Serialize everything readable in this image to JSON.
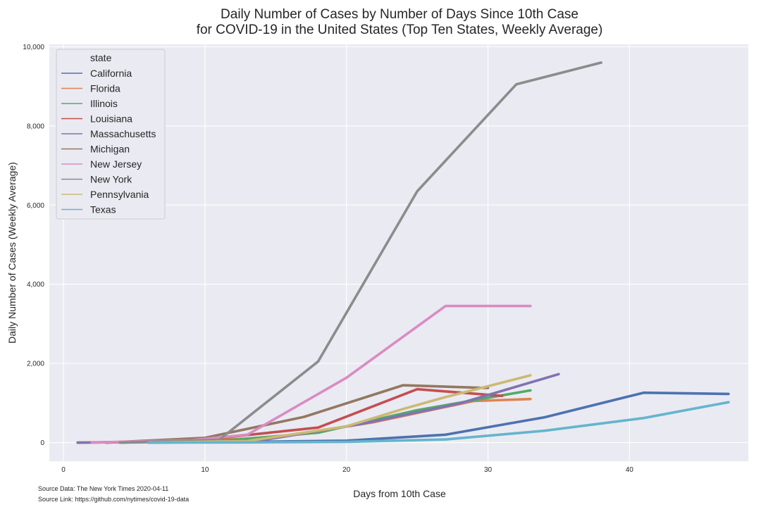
{
  "chart_data": {
    "type": "line",
    "title_line1": "Daily Number of Cases by Number of Days Since 10th Case",
    "title_line2": "for COVID-19 in the United States (Top Ten States, Weekly Average)",
    "xlabel": "Days from 10th Case",
    "ylabel": "Daily Number of Cases (Weekly Average)",
    "xlim": [
      -1,
      48.4
    ],
    "ylim": [
      -470,
      10060
    ],
    "xticks": [
      0,
      10,
      20,
      30,
      40
    ],
    "yticks": [
      0,
      2000,
      4000,
      6000,
      8000,
      10000
    ],
    "ytick_labels": [
      "0",
      "2,000",
      "4,000",
      "6,000",
      "8,000",
      "10,000"
    ],
    "grid": true,
    "legend_placement": "top-left",
    "legend_title": "state",
    "series": [
      {
        "name": "California",
        "color": "#4c72b0",
        "points": [
          [
            6,
            0
          ],
          [
            13,
            20
          ],
          [
            20,
            50
          ],
          [
            27,
            200
          ],
          [
            34,
            640
          ],
          [
            41,
            1260
          ],
          [
            47,
            1230
          ]
        ]
      },
      {
        "name": "Florida",
        "color": "#dd8452",
        "points": [
          [
            1,
            0
          ],
          [
            8,
            40
          ],
          [
            15,
            120
          ],
          [
            22,
            520
          ],
          [
            29,
            1050
          ],
          [
            33,
            1100
          ]
        ]
      },
      {
        "name": "Illinois",
        "color": "#55a868",
        "points": [
          [
            4,
            0
          ],
          [
            11,
            40
          ],
          [
            18,
            250
          ],
          [
            25,
            820
          ],
          [
            33,
            1320
          ]
        ]
      },
      {
        "name": "Louisiana",
        "color": "#c44e52",
        "points": [
          [
            3,
            0
          ],
          [
            10,
            80
          ],
          [
            18,
            380
          ],
          [
            25,
            1350
          ],
          [
            31,
            1180
          ]
        ]
      },
      {
        "name": "Massachusetts",
        "color": "#8172b3",
        "points": [
          [
            1,
            0
          ],
          [
            7,
            20
          ],
          [
            14,
            60
          ],
          [
            21,
            470
          ],
          [
            28,
            990
          ],
          [
            35,
            1730
          ]
        ]
      },
      {
        "name": "Michigan",
        "color": "#937860",
        "points": [
          [
            3,
            0
          ],
          [
            10,
            120
          ],
          [
            17,
            650
          ],
          [
            24,
            1450
          ],
          [
            30,
            1380
          ]
        ]
      },
      {
        "name": "New Jersey",
        "color": "#da8bc3",
        "points": [
          [
            2,
            0
          ],
          [
            9,
            60
          ],
          [
            13,
            200
          ],
          [
            20,
            1640
          ],
          [
            27,
            3450
          ],
          [
            33,
            3450
          ]
        ]
      },
      {
        "name": "New York",
        "color": "#8c8c8c",
        "points": [
          [
            4,
            0
          ],
          [
            11,
            70
          ],
          [
            18,
            2050
          ],
          [
            25,
            6350
          ],
          [
            32,
            9050
          ],
          [
            38,
            9600
          ]
        ]
      },
      {
        "name": "Pennsylvania",
        "color": "#ccb974",
        "points": [
          [
            6,
            0
          ],
          [
            13,
            40
          ],
          [
            20,
            410
          ],
          [
            24,
            850
          ],
          [
            27,
            1150
          ],
          [
            33,
            1700
          ]
        ]
      },
      {
        "name": "Texas",
        "color": "#64b5cd",
        "points": [
          [
            6,
            0
          ],
          [
            13,
            5
          ],
          [
            20,
            20
          ],
          [
            27,
            80
          ],
          [
            34,
            300
          ],
          [
            41,
            620
          ],
          [
            47,
            1020
          ]
        ]
      }
    ]
  },
  "source_data": "Source Data: The New York Times 2020-04-11",
  "source_link": "Source Link: https://github.com/nytimes/covid-19-data"
}
